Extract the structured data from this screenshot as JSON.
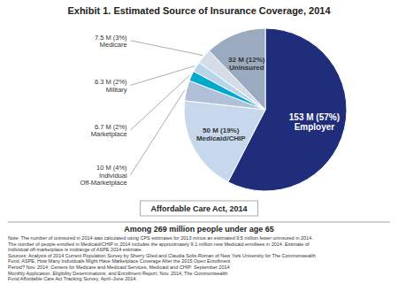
{
  "chart_data": {
    "type": "pie",
    "title": "Exhibit 1. Estimated Source of Insurance Coverage, 2014",
    "subtitle": "Among 269 million people under age 65",
    "annotations": [
      "Affordable Care Act, 2014",
      "Note: The number of uninsured in 2014 was calculated using CPS estimates for 2013 minus an estimated 9.5 million fewer uninsured in 2014.\nThe number of people enrolled in Medicaid/CHIP in 2014 includes the approximately 9.1 million new Medicaid enrollees in 2014. Estimate of\nIndividual off-marketplace is midrange of ASPE 2014 estimate.\nSources: Analysis of 2014 Current Population Survey by Sherry Glied and Claudia Solis-Roman of New York University for The Commonwealth\nFund; ASPE, How Many Individuals Might Have Marketplace Coverage After the 2015 Open Enrollment\nPeriod? Nov. 2014; Centers for Medicare and Medicaid Services, Medicaid and CHIP: September 2014\nMonthly Application, Eligibility Determinations, and Enrollment Report, Nov. 2014; The Commonwealth\nFund Affordable Care Act Tracking Survey, April–June 2014."
    ],
    "categories": [
      "153 M (57%)\nEmployer",
      "50 M (19%)\nMedicaid/CHIP",
      "10 M (4%)\nIndividual\nOff-Marketplace",
      "6.7 M (2%)\nMarketplace",
      "6.3 M (2%)\nMilitary",
      "7.5 M (3%)\nMedicare",
      "32 M (12%)\nUninsured"
    ],
    "values": [
      57,
      19,
      4,
      2,
      2,
      3,
      12
    ],
    "colors": [
      "#1f2d7a",
      "#c8d8ec",
      "#b0c0d8",
      "#00aacc",
      "#b8d4e8",
      "#d4dce8",
      "#9aaabf"
    ]
  }
}
